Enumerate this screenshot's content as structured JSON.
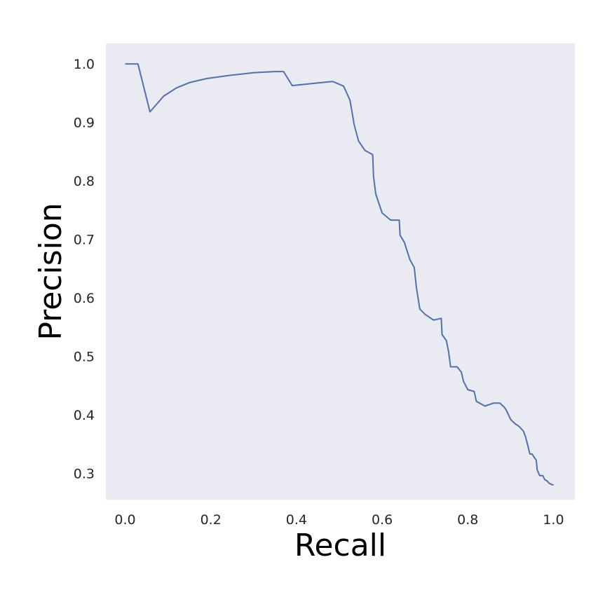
{
  "chart_data": {
    "type": "line",
    "title": "",
    "xlabel": "Recall",
    "ylabel": "Precision",
    "xlim": [
      -0.045,
      1.05
    ],
    "ylim": [
      0.255,
      1.035
    ],
    "x_ticks": [
      "0.0",
      "0.2",
      "0.4",
      "0.6",
      "0.8",
      "1.0"
    ],
    "y_ticks": [
      "0.3",
      "0.4",
      "0.5",
      "0.6",
      "0.7",
      "0.8",
      "0.9",
      "1.0"
    ],
    "grid": false,
    "legend": "none",
    "style": {
      "plot_background": "#eaeaf2",
      "line_color": "#4c72b0"
    },
    "series": [
      {
        "x": [
          0.0,
          0.03,
          0.058,
          0.09,
          0.12,
          0.15,
          0.19,
          0.24,
          0.3,
          0.35,
          0.37,
          0.39,
          0.43,
          0.47,
          0.485,
          0.51,
          0.525,
          0.535,
          0.545,
          0.56,
          0.578,
          0.58,
          0.585,
          0.6,
          0.62,
          0.64,
          0.642,
          0.652,
          0.665,
          0.675,
          0.68,
          0.688,
          0.7,
          0.72,
          0.738,
          0.74,
          0.75,
          0.755,
          0.76,
          0.775,
          0.785,
          0.79,
          0.8,
          0.815,
          0.82,
          0.84,
          0.86,
          0.875,
          0.885,
          0.89,
          0.9,
          0.91,
          0.92,
          0.93,
          0.935,
          0.94,
          0.945,
          0.95,
          0.96,
          0.962,
          0.968,
          0.975,
          0.98,
          0.985,
          0.99,
          0.995,
          1.0
        ],
        "y": [
          1.0,
          1.0,
          0.918,
          0.945,
          0.959,
          0.968,
          0.975,
          0.98,
          0.985,
          0.987,
          0.987,
          0.963,
          0.966,
          0.969,
          0.97,
          0.962,
          0.938,
          0.895,
          0.868,
          0.852,
          0.845,
          0.808,
          0.778,
          0.745,
          0.733,
          0.733,
          0.707,
          0.695,
          0.665,
          0.652,
          0.618,
          0.581,
          0.572,
          0.562,
          0.565,
          0.537,
          0.527,
          0.508,
          0.482,
          0.482,
          0.473,
          0.457,
          0.443,
          0.44,
          0.423,
          0.415,
          0.42,
          0.42,
          0.413,
          0.408,
          0.392,
          0.385,
          0.38,
          0.372,
          0.362,
          0.348,
          0.333,
          0.333,
          0.322,
          0.306,
          0.296,
          0.296,
          0.289,
          0.287,
          0.283,
          0.281,
          0.28
        ]
      }
    ]
  }
}
